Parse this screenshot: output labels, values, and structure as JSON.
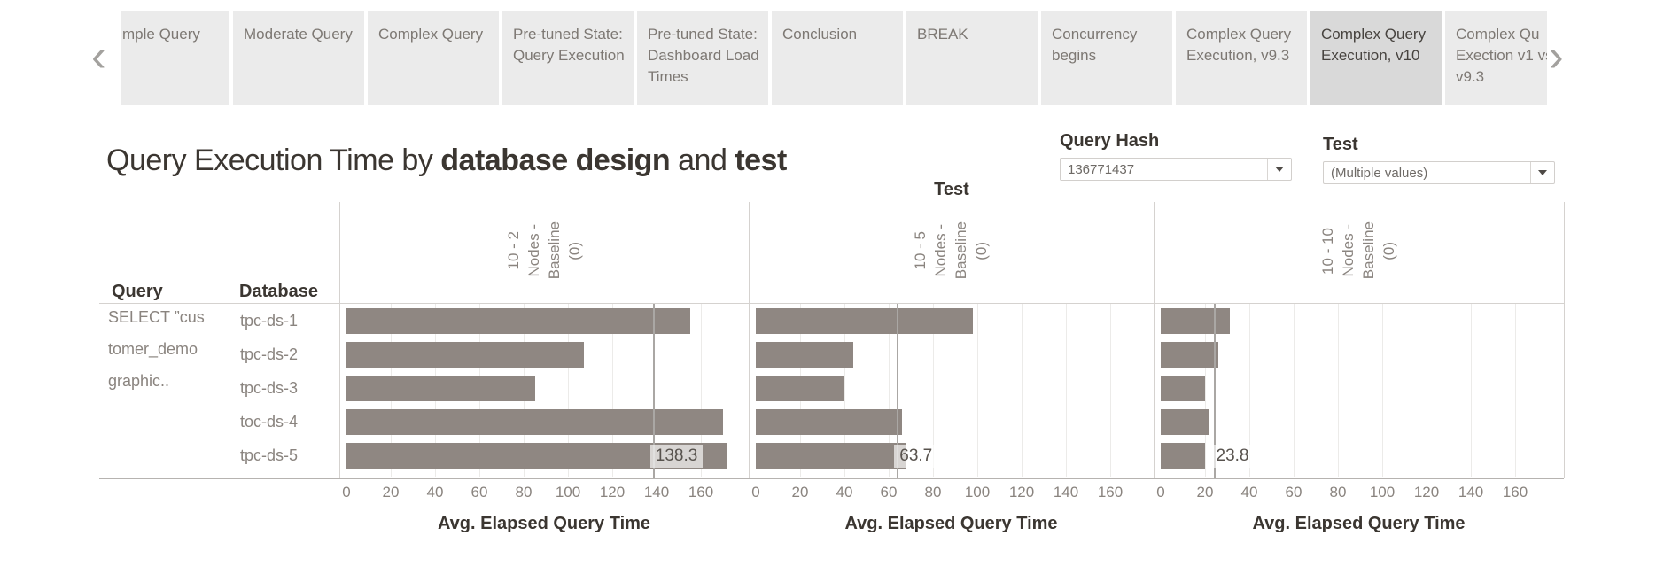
{
  "tab_bar": {
    "prev_icon": "‹",
    "next_icon": "›",
    "tabs": [
      {
        "label": "mple Query",
        "selected": false
      },
      {
        "label": "Moderate Query",
        "selected": false
      },
      {
        "label": "Complex Query",
        "selected": false
      },
      {
        "label": "Pre-tuned State: Query Execution",
        "selected": false
      },
      {
        "label": "Pre-tuned State: Dashboard Load Times",
        "selected": false
      },
      {
        "label": "Conclusion",
        "selected": false
      },
      {
        "label": "BREAK",
        "selected": false
      },
      {
        "label": "Concurrency begins",
        "selected": false
      },
      {
        "label": "Complex Query Execution, v9.3",
        "selected": false
      },
      {
        "label": "Complex Query Execution, v10",
        "selected": true
      },
      {
        "label": "Complex Qu Exection v1 vs. v9.3",
        "selected": false
      }
    ]
  },
  "title": {
    "regular1": "Query Execution Time by ",
    "bold1": "database design",
    "regular2": " and ",
    "bold2": "test"
  },
  "filters": {
    "query_hash": {
      "label": "Query Hash",
      "value": "136771437"
    },
    "test": {
      "label": "Test",
      "value": "(Multiple values)"
    }
  },
  "chart_data": {
    "type": "bar",
    "orientation": "horizontal",
    "column_field_header": "Test",
    "row_field_headers": {
      "query": "Query",
      "database": "Database"
    },
    "query_lines": [
      "SELECT ”cus",
      "tomer_demo",
      "graphic.."
    ],
    "categories": [
      "tpc-ds-1",
      "tpc-ds-2",
      "tpc-ds-3",
      "toc-ds-4",
      "tpc-ds-5"
    ],
    "x_ticks": [
      0,
      20,
      40,
      60,
      80,
      100,
      120,
      140,
      160
    ],
    "x_max": 182,
    "xlabel": "Avg. Elapsed Query Time",
    "bar_color": "#8f8782",
    "ref_line_color": "#aaa7a4",
    "panels": [
      {
        "test_name": "10 - 2 Nodes - Baseline (0)",
        "header_lines": [
          "10 - 2",
          "Nodes -",
          "Baseline",
          "(0)"
        ],
        "values": [
          155,
          107,
          85,
          170,
          172
        ],
        "ref_value": 138.3,
        "ref_label": "138.3"
      },
      {
        "test_name": "10 - 5 Nodes - Baseline (0)",
        "header_lines": [
          "10 - 5",
          "Nodes -",
          "Baseline",
          "(0)"
        ],
        "values": [
          98,
          44,
          40,
          66,
          68
        ],
        "ref_value": 63.7,
        "ref_label": "63.7"
      },
      {
        "test_name": "10 - 10 Nodes - Baseline (0)",
        "header_lines": [
          "10 - 10",
          "Nodes -",
          "Baseline",
          "(0)"
        ],
        "values": [
          31,
          26,
          20,
          22,
          20
        ],
        "ref_value": 23.8,
        "ref_label": "23.8"
      }
    ]
  }
}
